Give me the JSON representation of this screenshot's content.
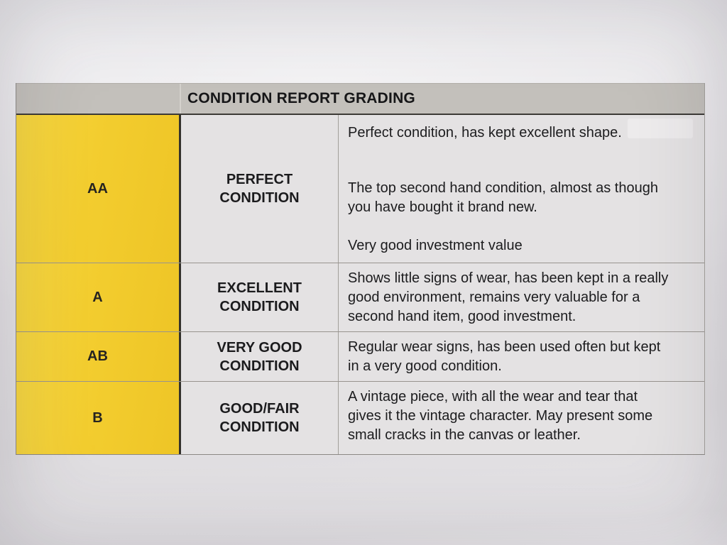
{
  "colors": {
    "paper": "#e6e4e7",
    "header_gray": "#c3c0bb",
    "cell_gray": "#e4e2e3",
    "grade_yellow": "#f3cd2f",
    "text": "#1c1c1e"
  },
  "table": {
    "header": {
      "title": "CONDITION REPORT GRADING"
    },
    "rows": [
      {
        "grade": "AA",
        "condition": "PERFECT\nCONDITION",
        "paragraphs": [
          "Perfect condition, has kept excellent shape.",
          "The top second hand condition, almost as though\nyou have bought it brand new.",
          "Very good investment value"
        ]
      },
      {
        "grade": "A",
        "condition": "EXCELLENT\nCONDITION",
        "paragraphs": [
          "Shows little signs of wear, has been kept in a really\ngood environment, remains very valuable for a\nsecond hand item, good investment."
        ]
      },
      {
        "grade": "AB",
        "condition": "VERY GOOD\nCONDITION",
        "paragraphs": [
          "Regular wear signs, has been used often but kept\nin a very good condition."
        ]
      },
      {
        "grade": "B",
        "condition": "GOOD/FAIR\nCONDITION",
        "paragraphs": [
          "A vintage piece, with all the wear and tear that\ngives it the vintage character. May present some\nsmall cracks in the canvas or leather."
        ]
      }
    ]
  }
}
